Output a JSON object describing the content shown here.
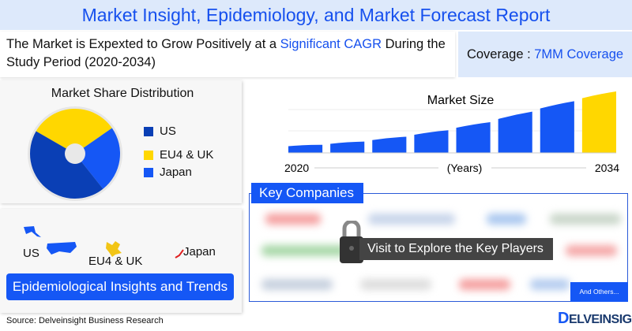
{
  "title": "Market Insight, Epidemiology, and Market Forecast Report",
  "headline": {
    "pre": "The Market is Expexted to Grow Positively at a ",
    "highlight": "Significant CAGR",
    "post": " During the Study Period (2020-2034)"
  },
  "coverage": {
    "label": "Coverage : ",
    "value": "7MM Coverage"
  },
  "colors": {
    "accent": "#1557f5",
    "dark_blue": "#0a3fb5",
    "yellow": "#ffd700",
    "light_bg": "#dde9fb"
  },
  "market_share": {
    "title": "Market Share Distribution",
    "legend": [
      {
        "label": "US",
        "color": "#0a3fb5"
      },
      {
        "label": "EU4 & UK",
        "color": "#ffd700"
      },
      {
        "label": "Japan",
        "color": "#1557f5"
      }
    ]
  },
  "chart_data": [
    {
      "type": "pie",
      "title": "Market Share Distribution",
      "categories": [
        "US",
        "EU4 & UK",
        "Japan"
      ],
      "values": [
        44,
        32,
        24
      ],
      "donut": true
    },
    {
      "type": "bar",
      "title": "Market Size",
      "xlabel": "(Years)",
      "x_start": "2020",
      "x_end": "2034",
      "values": [
        10,
        14,
        20,
        28,
        38,
        51,
        64,
        76
      ],
      "highlight_last": true,
      "colors": [
        "#1557f5",
        "#ffd700"
      ]
    }
  ],
  "epidemiology": {
    "regions": [
      "US",
      "EU4 & UK",
      "Japan"
    ],
    "button": "Epidemiological Insights and Trends"
  },
  "key_companies": {
    "title": "Key Companies",
    "cta": "Visit to Explore the Key Players",
    "others": "And Others..."
  },
  "source": "Source: Delveinsight Business Research",
  "logo": "DELVEINSIGHT"
}
